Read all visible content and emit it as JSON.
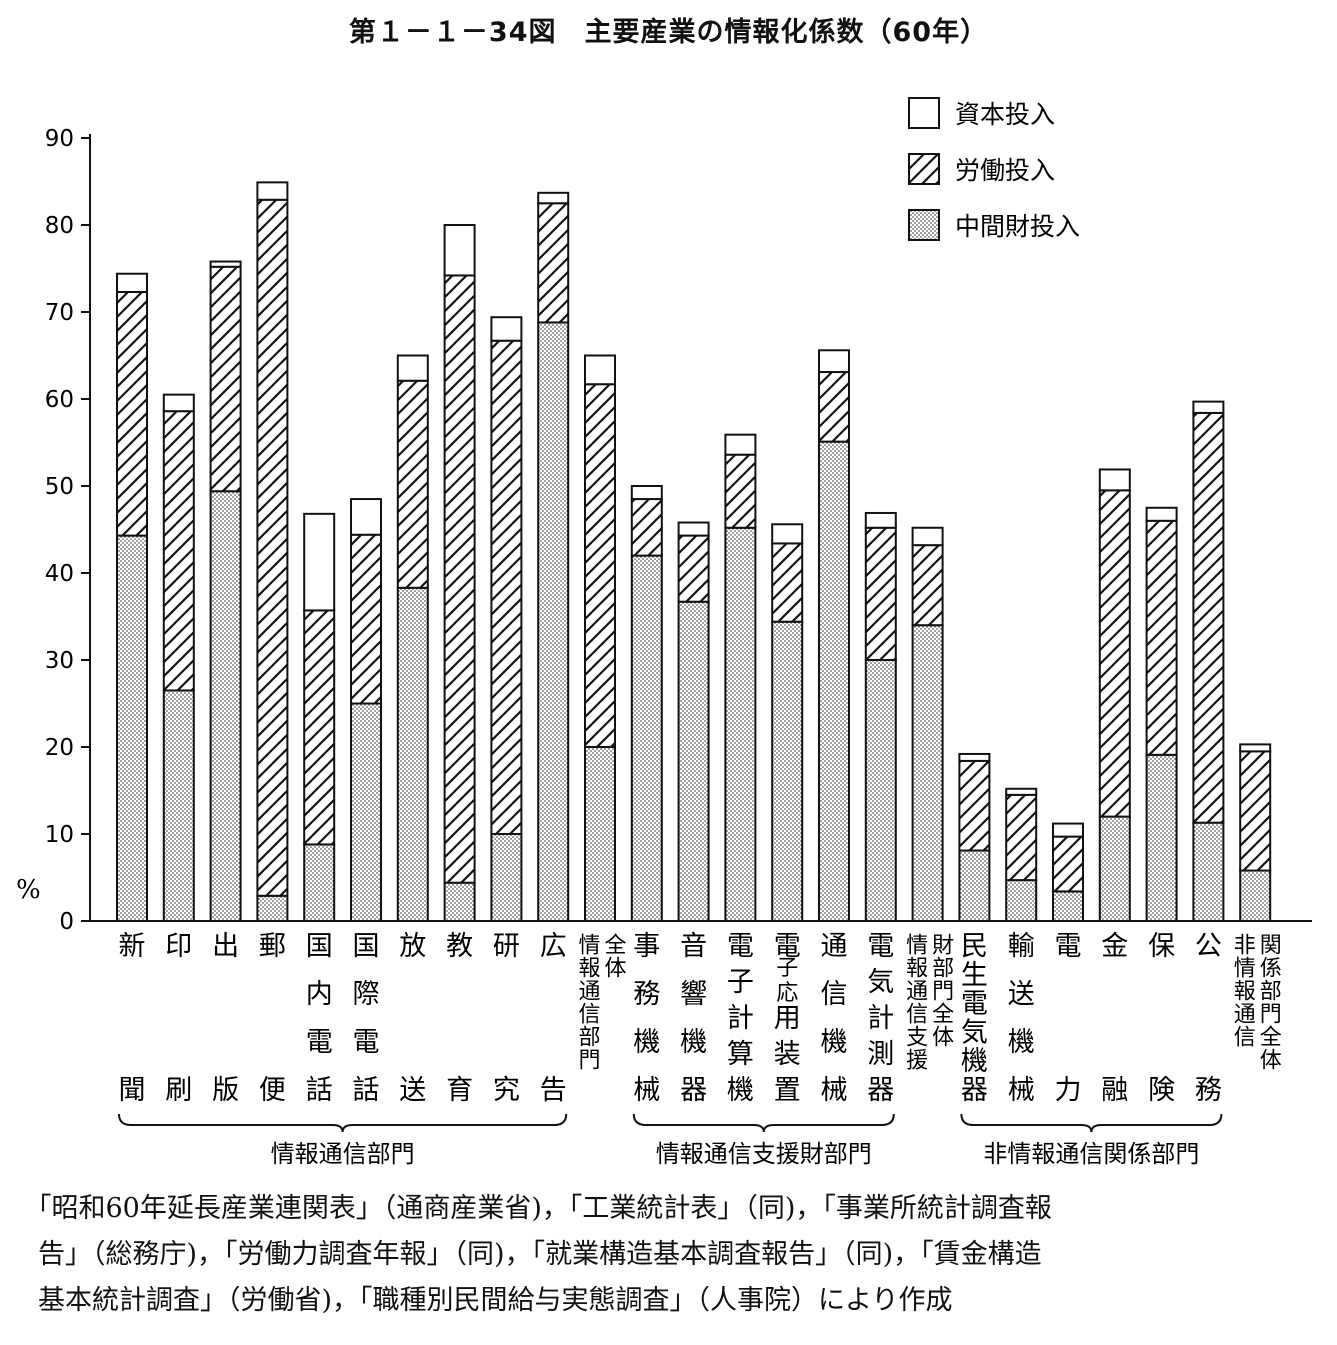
{
  "title": "第１－１－34図　主要産業の情報化係数（60年）",
  "chart_data": {
    "type": "bar",
    "stacked": true,
    "ylabel": "%",
    "ylim": [
      0,
      90
    ],
    "yticks": [
      "0",
      "10",
      "20",
      "30",
      "40",
      "50",
      "60",
      "70",
      "80",
      "90"
    ],
    "grid": false,
    "legend_position": "top-right",
    "categories": [
      [
        "新",
        "聞"
      ],
      [
        "印",
        "刷"
      ],
      [
        "出",
        "版"
      ],
      [
        "郵",
        "便"
      ],
      [
        "国",
        "内",
        "電",
        "話"
      ],
      [
        "国",
        "際",
        "電",
        "話"
      ],
      [
        "放",
        "送"
      ],
      [
        "教",
        "育"
      ],
      [
        "研",
        "究"
      ],
      [
        "広",
        "告"
      ],
      [
        "全体",
        "情報通信部門"
      ],
      [
        "事",
        "務",
        "機",
        "械"
      ],
      [
        "音",
        "響",
        "機",
        "器"
      ],
      [
        "電",
        "子",
        "計",
        "算",
        "機"
      ],
      [
        "電",
        "子応",
        "用",
        "装",
        "置"
      ],
      [
        "通",
        "信",
        "機",
        "械"
      ],
      [
        "電",
        "気",
        "計",
        "測",
        "器"
      ],
      [
        "財部門全体",
        "情報通信支援"
      ],
      [
        "民",
        "生",
        "電",
        "気",
        "機",
        "器"
      ],
      [
        "輸",
        "送",
        "機",
        "械"
      ],
      [
        "電",
        "力"
      ],
      [
        "金",
        "融"
      ],
      [
        "保",
        "険"
      ],
      [
        "公",
        "務"
      ],
      [
        "関係部門全体",
        "非情報通信"
      ]
    ],
    "series": [
      {
        "name": "中間財投入",
        "values": [
          44.3,
          26.5,
          49.4,
          2.9,
          8.8,
          25.0,
          38.3,
          4.4,
          10.0,
          68.8,
          20.0,
          42.0,
          36.7,
          45.2,
          34.4,
          55.1,
          30.0,
          34.0,
          8.1,
          4.7,
          3.4,
          12.0,
          19.1,
          11.3,
          5.8
        ]
      },
      {
        "name": "労働投入",
        "values": [
          28.0,
          32.1,
          25.8,
          80.0,
          26.9,
          19.4,
          23.8,
          69.8,
          56.7,
          13.7,
          41.7,
          6.5,
          7.6,
          8.4,
          9.0,
          8.0,
          15.2,
          9.2,
          10.3,
          9.8,
          6.3,
          37.5,
          26.9,
          47.1,
          13.7
        ]
      },
      {
        "name": "資本投入",
        "values": [
          2.1,
          1.9,
          0.6,
          2.0,
          11.1,
          4.1,
          2.9,
          5.8,
          2.7,
          1.2,
          3.3,
          1.5,
          1.5,
          2.3,
          2.2,
          2.5,
          1.7,
          2.0,
          0.8,
          0.7,
          1.5,
          2.4,
          1.5,
          1.3,
          0.8
        ]
      }
    ],
    "groups": [
      {
        "label": "情報通信部門",
        "from": 0,
        "to": 9
      },
      {
        "label": "情報通信支援財部門",
        "from": 11,
        "to": 16
      },
      {
        "label": "非情報通信関係部門",
        "from": 18,
        "to": 23
      }
    ]
  },
  "source_lines": [
    "｢昭和60年延長産業連関表｣（通商産業省)，｢工業統計表｣（同)，｢事業所統計調査報",
    "告｣（総務庁)，｢労働力調査年報｣（同)，｢就業構造基本調査報告｣（同)，｢賃金構造",
    "基本統計調査｣（労働省)，｢職種別民間給与実態調査｣（人事院）により作成"
  ],
  "colors": {
    "ink": "#111111",
    "dots": "#555555",
    "paper": "#ffffff"
  }
}
